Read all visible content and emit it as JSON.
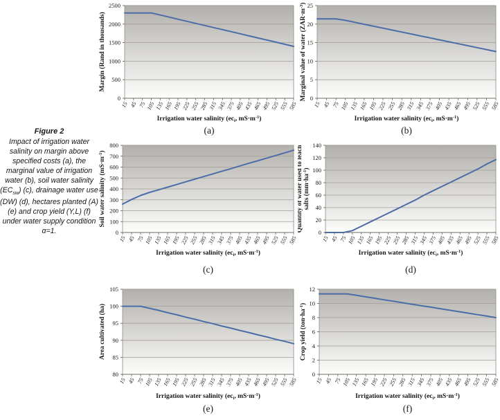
{
  "caption": {
    "title": "Figure 2",
    "body_pre": "Impact of irrigation water salinity on margin above specified costs (a), the marginal value of irrigation water (b), soil water salinity (EC",
    "body_sub": "sw",
    "body_post": ") (c), drainage water use (DW) (d), hectares planted (A) (e) and crop yield (Y,L) (f) under water supply condition α=1."
  },
  "chart_data": {
    "type": "line",
    "legend": "none",
    "grid": "horizontal",
    "line_color": "#4a6da8",
    "grid_color": "#a29e96",
    "axis_color": "#6f6b64",
    "plot_bg_top": "#b2b0ac",
    "plot_bg_bottom": "#fdfdfc",
    "categories": [
      15,
      45,
      75,
      105,
      135,
      165,
      195,
      225,
      255,
      285,
      315,
      345,
      375,
      405,
      435,
      465,
      495,
      525,
      555,
      585
    ],
    "xlabel_runs": [
      {
        "t": "Irrigation water salinity (ec"
      },
      {
        "t": "i",
        "sub": true
      },
      {
        "t": ", mS·m"
      },
      {
        "t": "-1",
        "sup": true
      },
      {
        "t": ")"
      }
    ],
    "charts": [
      {
        "id": "a",
        "sublabel": "(a)",
        "ylabel_lines": [
          [
            {
              "t": "Margin (Rand in thousands)"
            }
          ]
        ],
        "ylim": [
          0,
          2500
        ],
        "ystep": 500,
        "values": [
          2300,
          2300,
          2300,
          2300,
          2244,
          2188,
          2131,
          2075,
          2019,
          1963,
          1906,
          1850,
          1794,
          1738,
          1681,
          1625,
          1569,
          1513,
          1456,
          1400
        ]
      },
      {
        "id": "b",
        "sublabel": "(b)",
        "ylabel_lines": [
          [
            {
              "t": "Marginal value of water (ZAR·m"
            },
            {
              "t": "-3",
              "sup": true
            },
            {
              "t": ")"
            }
          ]
        ],
        "ylim": [
          0,
          25
        ],
        "ystep": 5,
        "values": [
          21.4,
          21.4,
          21.4,
          21.0,
          20.48,
          19.95,
          19.43,
          18.9,
          18.38,
          17.85,
          17.33,
          16.8,
          16.28,
          15.75,
          15.23,
          14.7,
          14.18,
          13.65,
          13.13,
          12.6
        ]
      },
      {
        "id": "c",
        "sublabel": "(c)",
        "ylabel_lines": [
          [
            {
              "t": "Soil water salinity (mS·m"
            },
            {
              "t": "-1",
              "sup": true
            },
            {
              "t": ")"
            }
          ]
        ],
        "ylim": [
          0,
          800
        ],
        "ystep": 100,
        "values": [
          260,
          303,
          340,
          368,
          392,
          416,
          440,
          465,
          489,
          513,
          537,
          561,
          585,
          610,
          634,
          658,
          682,
          706,
          731,
          755
        ]
      },
      {
        "id": "d",
        "sublabel": "(d)",
        "ylabel_lines": [
          [
            {
              "t": "Quantity of water used to leach"
            }
          ],
          [
            {
              "t": "salts (mm·ha"
            },
            {
              "t": "-1",
              "sup": true
            },
            {
              "t": ")"
            }
          ]
        ],
        "ylim": [
          0,
          140
        ],
        "ystep": 20,
        "values": [
          0,
          0,
          0,
          3,
          10,
          17,
          24,
          31,
          38,
          45,
          52,
          60,
          67,
          74,
          81,
          88,
          95,
          102,
          110,
          117
        ]
      },
      {
        "id": "e",
        "sublabel": "(e)",
        "ylabel_lines": [
          [
            {
              "t": "Area cultivated (ha)"
            }
          ]
        ],
        "ylim": [
          80,
          105
        ],
        "ystep": 5,
        "values": [
          100,
          100,
          100,
          99.4,
          98.8,
          98.1,
          97.5,
          96.8,
          96.2,
          95.5,
          94.9,
          94.2,
          93.6,
          92.9,
          92.3,
          91.6,
          91.0,
          90.3,
          89.7,
          89.0
        ]
      },
      {
        "id": "f",
        "sublabel": "(f)",
        "ylabel_lines": [
          [
            {
              "t": "Crop yield (ton·ha"
            },
            {
              "t": "-1",
              "sup": true
            },
            {
              "t": ")"
            }
          ]
        ],
        "ylim": [
          0,
          12
        ],
        "ystep": 2,
        "values": [
          11.35,
          11.35,
          11.35,
          11.35,
          11.14,
          10.93,
          10.72,
          10.51,
          10.3,
          10.09,
          9.88,
          9.67,
          9.47,
          9.26,
          9.05,
          8.84,
          8.63,
          8.42,
          8.21,
          8.0
        ]
      }
    ]
  }
}
